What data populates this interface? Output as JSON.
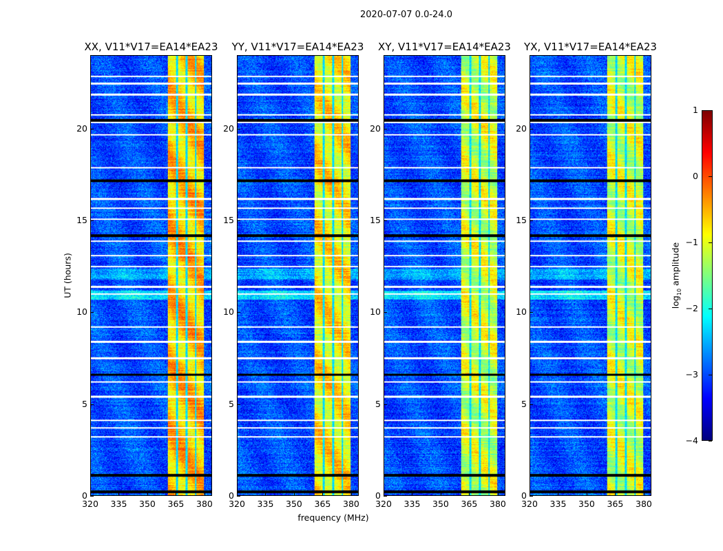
{
  "figure": {
    "suptitle": "2020-07-07 0.0-24.0",
    "xlabel": "frequency (MHz)",
    "ylabel": "UT (hours)",
    "colorbar": {
      "label_main": "log",
      "label_sub": "10",
      "label_rest": " amplitude",
      "ticks": [
        1,
        0,
        -1,
        -2,
        -3,
        -4
      ],
      "tick_labels": [
        "1",
        "0",
        "−1",
        "−2",
        "−3",
        "−4"
      ],
      "range": [
        -4,
        1
      ],
      "colormap": "jet"
    }
  },
  "chart_data": {
    "type": "heatmap",
    "panels": [
      {
        "title": "XX, V11*V17=EA14*EA23",
        "band_level": -0.6,
        "seed": 11
      },
      {
        "title": "YY, V11*V17=EA14*EA23",
        "band_level": -0.8,
        "seed": 23
      },
      {
        "title": "XY, V11*V17=EA14*EA23",
        "band_level": -1.1,
        "seed": 37
      },
      {
        "title": "YX, V11*V17=EA14*EA23",
        "band_level": -1.1,
        "seed": 51
      }
    ],
    "xlim": [
      320,
      384
    ],
    "ylim": [
      0,
      24
    ],
    "xticks": [
      320,
      335,
      350,
      365,
      380
    ],
    "yticks": [
      0,
      5,
      10,
      15,
      20
    ],
    "value_units": "log10 amplitude",
    "background_level": -3.0,
    "strong_band_MHz": [
      360.5,
      380
    ],
    "band_channel_gaps_MHz": [
      365.5,
      370.5,
      375.5
    ],
    "flagged_white_hours": [
      22.9,
      22.5,
      21.9,
      20.8,
      20.4,
      19.7,
      17.9,
      16.2,
      15.7,
      15.1,
      13.9,
      13.1,
      12.5,
      11.4,
      11.0,
      9.2,
      8.4,
      7.5,
      6.2,
      5.4,
      4.1,
      3.7,
      3.2
    ],
    "flagged_black_hours": [
      17.2,
      14.2,
      6.6,
      20.5,
      1.1,
      0.2
    ]
  }
}
